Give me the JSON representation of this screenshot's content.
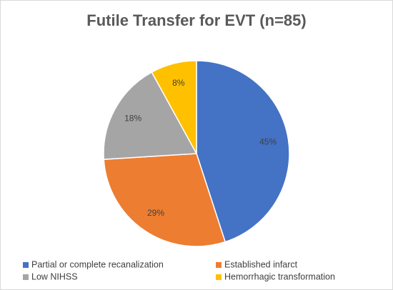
{
  "chart_data": {
    "type": "pie",
    "title": "Futile Transfer for EVT (n=85)",
    "categories": [
      "Partial or complete recanalization",
      "Established infarct",
      "Low NIHSS",
      "Hemorrhagic transformation"
    ],
    "values": [
      45,
      29,
      18,
      8
    ],
    "value_labels": [
      "45%",
      "29%",
      "18%",
      "8%"
    ],
    "colors": [
      "#4472c4",
      "#ed7d31",
      "#a5a5a5",
      "#ffc000"
    ]
  }
}
